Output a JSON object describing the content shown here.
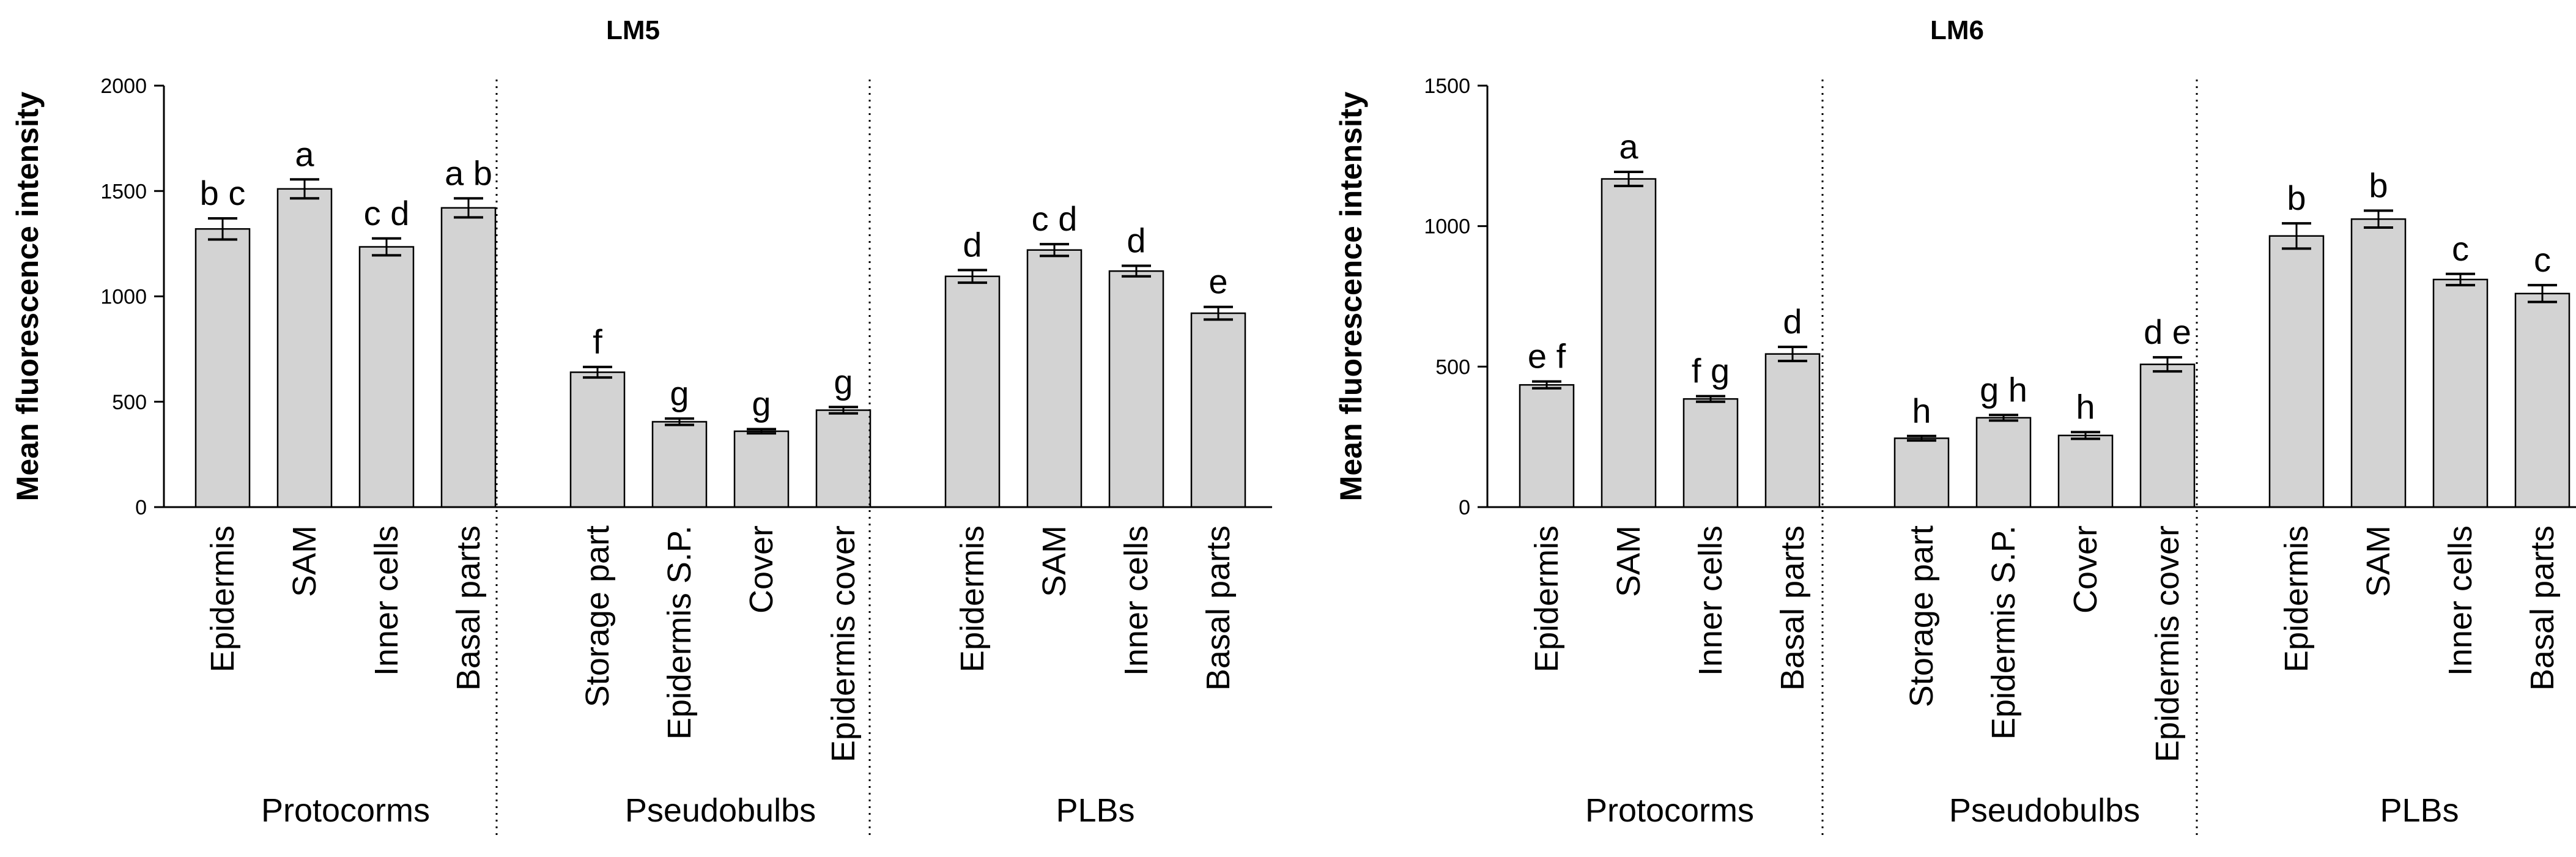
{
  "colors": {
    "bar_fill": "#d3d3d3",
    "bar_stroke": "#000000",
    "axis": "#000000",
    "separator": "#000000"
  },
  "chart_data": [
    {
      "type": "bar",
      "title": "LM5",
      "ylabel": "Mean fluorescence intensity",
      "xlabel": "",
      "ylim": [
        0,
        2000
      ],
      "yticks": [
        "0",
        "500",
        "1000",
        "1500",
        "2000"
      ],
      "grid": false,
      "error_bars": true,
      "groups": [
        {
          "label": "Protocorms",
          "categories": [
            "Epidermis",
            "SAM",
            "Inner cells",
            "Basal parts"
          ],
          "values": [
            1320,
            1510,
            1235,
            1420
          ],
          "errors": [
            50,
            45,
            40,
            45
          ],
          "letters": [
            "b c",
            "a",
            "c d",
            "a b"
          ]
        },
        {
          "label": "Pseudobulbs",
          "categories": [
            "Storage part",
            "Epidermis S.P.",
            "Cover",
            "Epidermis cover"
          ],
          "values": [
            640,
            405,
            360,
            460
          ],
          "errors": [
            25,
            15,
            10,
            15
          ],
          "letters": [
            "f",
            "g",
            "g",
            "g"
          ]
        },
        {
          "label": "PLBs",
          "categories": [
            "Epidermis",
            "SAM",
            "Inner cells",
            "Basal parts"
          ],
          "values": [
            1095,
            1220,
            1120,
            920
          ],
          "errors": [
            30,
            28,
            25,
            30
          ],
          "letters": [
            "d",
            "c d",
            "d",
            "e"
          ]
        }
      ]
    },
    {
      "type": "bar",
      "title": "LM6",
      "ylabel": "Mean fluorescence intensity",
      "xlabel": "",
      "ylim": [
        0,
        1500
      ],
      "yticks": [
        "0",
        "500",
        "1000",
        "1500"
      ],
      "grid": false,
      "error_bars": true,
      "groups": [
        {
          "label": "Protocorms",
          "categories": [
            "Epidermis",
            "SAM",
            "Inner cells",
            "Basal parts"
          ],
          "values": [
            435,
            1168,
            385,
            545
          ],
          "errors": [
            12,
            25,
            10,
            25
          ],
          "letters": [
            "e f",
            "a",
            "f g",
            "d"
          ]
        },
        {
          "label": "Pseudobulbs",
          "categories": [
            "Storage part",
            "Epidermis S.P.",
            "Cover",
            "Epidermis cover"
          ],
          "values": [
            245,
            318,
            255,
            508
          ],
          "errors": [
            8,
            10,
            12,
            25
          ],
          "letters": [
            "h",
            "g h",
            "h",
            "d e"
          ]
        },
        {
          "label": "PLBs",
          "categories": [
            "Epidermis",
            "SAM",
            "Inner cells",
            "Basal parts"
          ],
          "values": [
            965,
            1025,
            810,
            760
          ],
          "errors": [
            45,
            30,
            20,
            30
          ],
          "letters": [
            "b",
            "b",
            "c",
            "c"
          ]
        }
      ]
    }
  ]
}
